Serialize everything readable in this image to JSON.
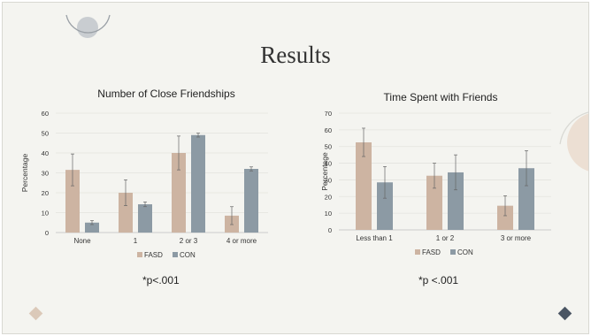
{
  "slide": {
    "title": "Results",
    "colors": {
      "background": "#f4f4f0",
      "accent_circle": "#c9cdd1",
      "arc": "#9aa0a6",
      "diamond_left": "#dbc9b9",
      "diamond_right": "#4a5563",
      "deco_circle": "#ecdfd3"
    }
  },
  "chart_data": [
    {
      "type": "bar",
      "title": "Number of Close Friendships",
      "ylabel": "Percentage",
      "xlabel": "",
      "categories": [
        "None",
        "1",
        "2 or 3",
        "4 or more"
      ],
      "ylim": [
        0,
        60
      ],
      "yticks": [
        "0",
        "10",
        "20",
        "30",
        "40",
        "50",
        "60"
      ],
      "grid": true,
      "legend_position": "bottom",
      "series": [
        {
          "name": "FASD",
          "color": "#cdb4a2",
          "values": [
            31.5,
            20,
            40,
            8.5
          ],
          "errors": [
            8,
            6.5,
            8.5,
            4.5
          ]
        },
        {
          "name": "CON",
          "color": "#8c9aa4",
          "values": [
            5,
            14.2,
            49,
            32
          ],
          "errors": [
            1,
            1.2,
            1,
            1
          ]
        }
      ],
      "note": "*p<.001"
    },
    {
      "type": "bar",
      "title": "Time Spent with Friends",
      "ylabel": "Percentage",
      "xlabel": "",
      "categories": [
        "Less than 1",
        "1 or 2",
        "3 or more"
      ],
      "ylim": [
        0,
        70
      ],
      "yticks": [
        "0",
        "10",
        "20",
        "30",
        "40",
        "50",
        "60",
        "70"
      ],
      "grid": true,
      "legend_position": "bottom",
      "series": [
        {
          "name": "FASD",
          "color": "#cdb4a2",
          "values": [
            52.5,
            32.5,
            14.5
          ],
          "errors": [
            8.5,
            7.5,
            6
          ]
        },
        {
          "name": "CON",
          "color": "#8c9aa4",
          "values": [
            28.5,
            34.5,
            37
          ],
          "errors": [
            9.5,
            10.5,
            10.5
          ]
        }
      ],
      "note": "*p <.001"
    }
  ]
}
